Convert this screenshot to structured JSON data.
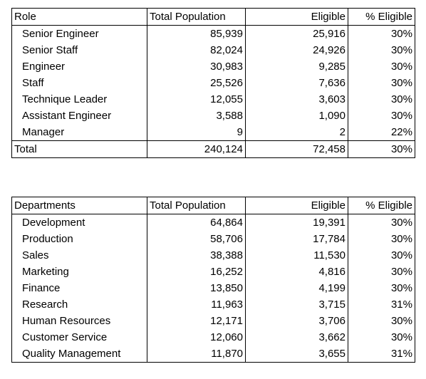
{
  "role_table": {
    "headers": [
      "Role",
      "Total Population",
      "Eligible",
      "% Eligible"
    ],
    "rows": [
      [
        "Senior Engineer",
        "85,939",
        "25,916",
        "30%"
      ],
      [
        "Senior Staff",
        "82,024",
        "24,926",
        "30%"
      ],
      [
        "Engineer",
        "30,983",
        "9,285",
        "30%"
      ],
      [
        "Staff",
        "25,526",
        "7,636",
        "30%"
      ],
      [
        "Technique Leader",
        "12,055",
        "3,603",
        "30%"
      ],
      [
        "Assistant Engineer",
        "3,588",
        "1,090",
        "30%"
      ],
      [
        "Manager",
        "9",
        "2",
        "22%"
      ]
    ],
    "total": [
      "Total",
      "240,124",
      "72,458",
      "30%"
    ]
  },
  "dept_table": {
    "headers": [
      "Departments",
      "Total Population",
      "Eligible",
      "% Eligible"
    ],
    "rows": [
      [
        "Development",
        "64,864",
        "19,391",
        "30%"
      ],
      [
        "Production",
        "58,706",
        "17,784",
        "30%"
      ],
      [
        "Sales",
        "38,388",
        "11,530",
        "30%"
      ],
      [
        "Marketing",
        "16,252",
        "4,816",
        "30%"
      ],
      [
        "Finance",
        "13,850",
        "4,199",
        "30%"
      ],
      [
        "Research",
        "11,963",
        "3,715",
        "31%"
      ],
      [
        "Human Resources",
        "12,171",
        "3,706",
        "30%"
      ],
      [
        "Customer Service",
        "12,060",
        "3,662",
        "30%"
      ],
      [
        "Quality Management",
        "11,870",
        "3,655",
        "31%"
      ]
    ]
  }
}
